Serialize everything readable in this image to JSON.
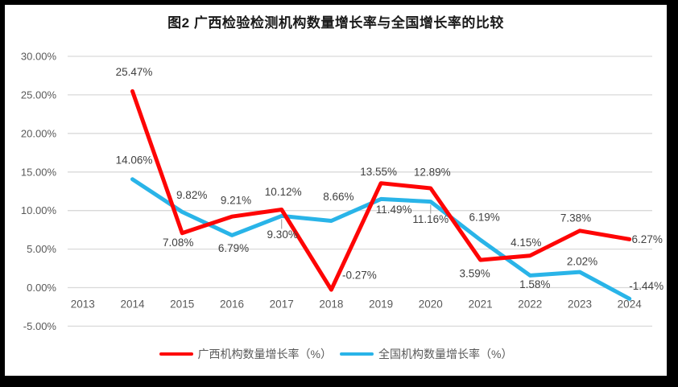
{
  "frame": {
    "border_color": "#000000",
    "background": "#ffffff"
  },
  "chart": {
    "title": "图2 广西检验检测机构数量增长率与全国增长率的比较"
  },
  "legend": {
    "items": [
      {
        "label": "广西机构数量增长率（%）",
        "color": "#fe0505"
      },
      {
        "label": "全国机构数量增长率（%）",
        "color": "#29b4e8"
      }
    ]
  },
  "chart_data": {
    "type": "line",
    "title": "图2 广西检验检测机构数量增长率与全国增长率的比较",
    "categories": [
      "2013",
      "2014",
      "2015",
      "2016",
      "2017",
      "2018",
      "2019",
      "2020",
      "2021",
      "2022",
      "2023",
      "2024"
    ],
    "xlabel": "",
    "ylabel": "",
    "ylim": [
      -5,
      30
    ],
    "y_ticks": [
      "30.00%",
      "25.00%",
      "20.00%",
      "15.00%",
      "10.00%",
      "5.00%",
      "0.00%",
      "-5.00%"
    ],
    "grid": true,
    "grid_color": "#d9d9d9",
    "leader_color": "#a6a6a6",
    "legend_position": "bottom",
    "series": [
      {
        "name": "广西机构数量增长率（%）",
        "color": "#fe0505",
        "values": [
          null,
          25.47,
          7.08,
          9.21,
          10.12,
          -0.27,
          13.55,
          12.89,
          3.59,
          4.15,
          7.38,
          6.27
        ],
        "labels": [
          null,
          "25.47%",
          "7.08%",
          "9.21%",
          "10.12%",
          "-0.27%",
          "13.55%",
          "12.89%",
          "3.59%",
          "4.15%",
          "7.38%",
          "6.27%"
        ],
        "label_offsets": [
          null,
          [
            2,
            -24
          ],
          [
            -5,
            12
          ],
          [
            5,
            -20
          ],
          [
            2,
            -22
          ],
          [
            35,
            -18
          ],
          [
            -3,
            -14
          ],
          [
            2,
            -20
          ],
          [
            -7,
            17
          ],
          [
            -5,
            -16
          ],
          [
            -5,
            -16
          ],
          [
            22,
            0
          ]
        ],
        "leader_indices": []
      },
      {
        "name": "全国机构数量增长率（%）",
        "color": "#29b4e8",
        "values": [
          null,
          14.06,
          9.82,
          6.79,
          9.3,
          8.66,
          11.49,
          11.16,
          6.19,
          1.58,
          2.02,
          -1.44
        ],
        "labels": [
          null,
          "14.06%",
          "9.82%",
          "6.79%",
          "9.30%",
          "8.66%",
          "11.49%",
          "11.16%",
          "6.19%",
          "1.58%",
          "2.02%",
          "-1.44%"
        ],
        "label_offsets": [
          null,
          [
            2,
            -24
          ],
          [
            12,
            -21
          ],
          [
            2,
            16
          ],
          [
            1,
            23
          ],
          [
            9,
            -30
          ],
          [
            16,
            13
          ],
          [
            0,
            22
          ],
          [
            5,
            -28
          ],
          [
            6,
            11
          ],
          [
            3,
            -13
          ],
          [
            21,
            -16
          ]
        ],
        "leader_indices": [
          4,
          7
        ]
      }
    ]
  }
}
